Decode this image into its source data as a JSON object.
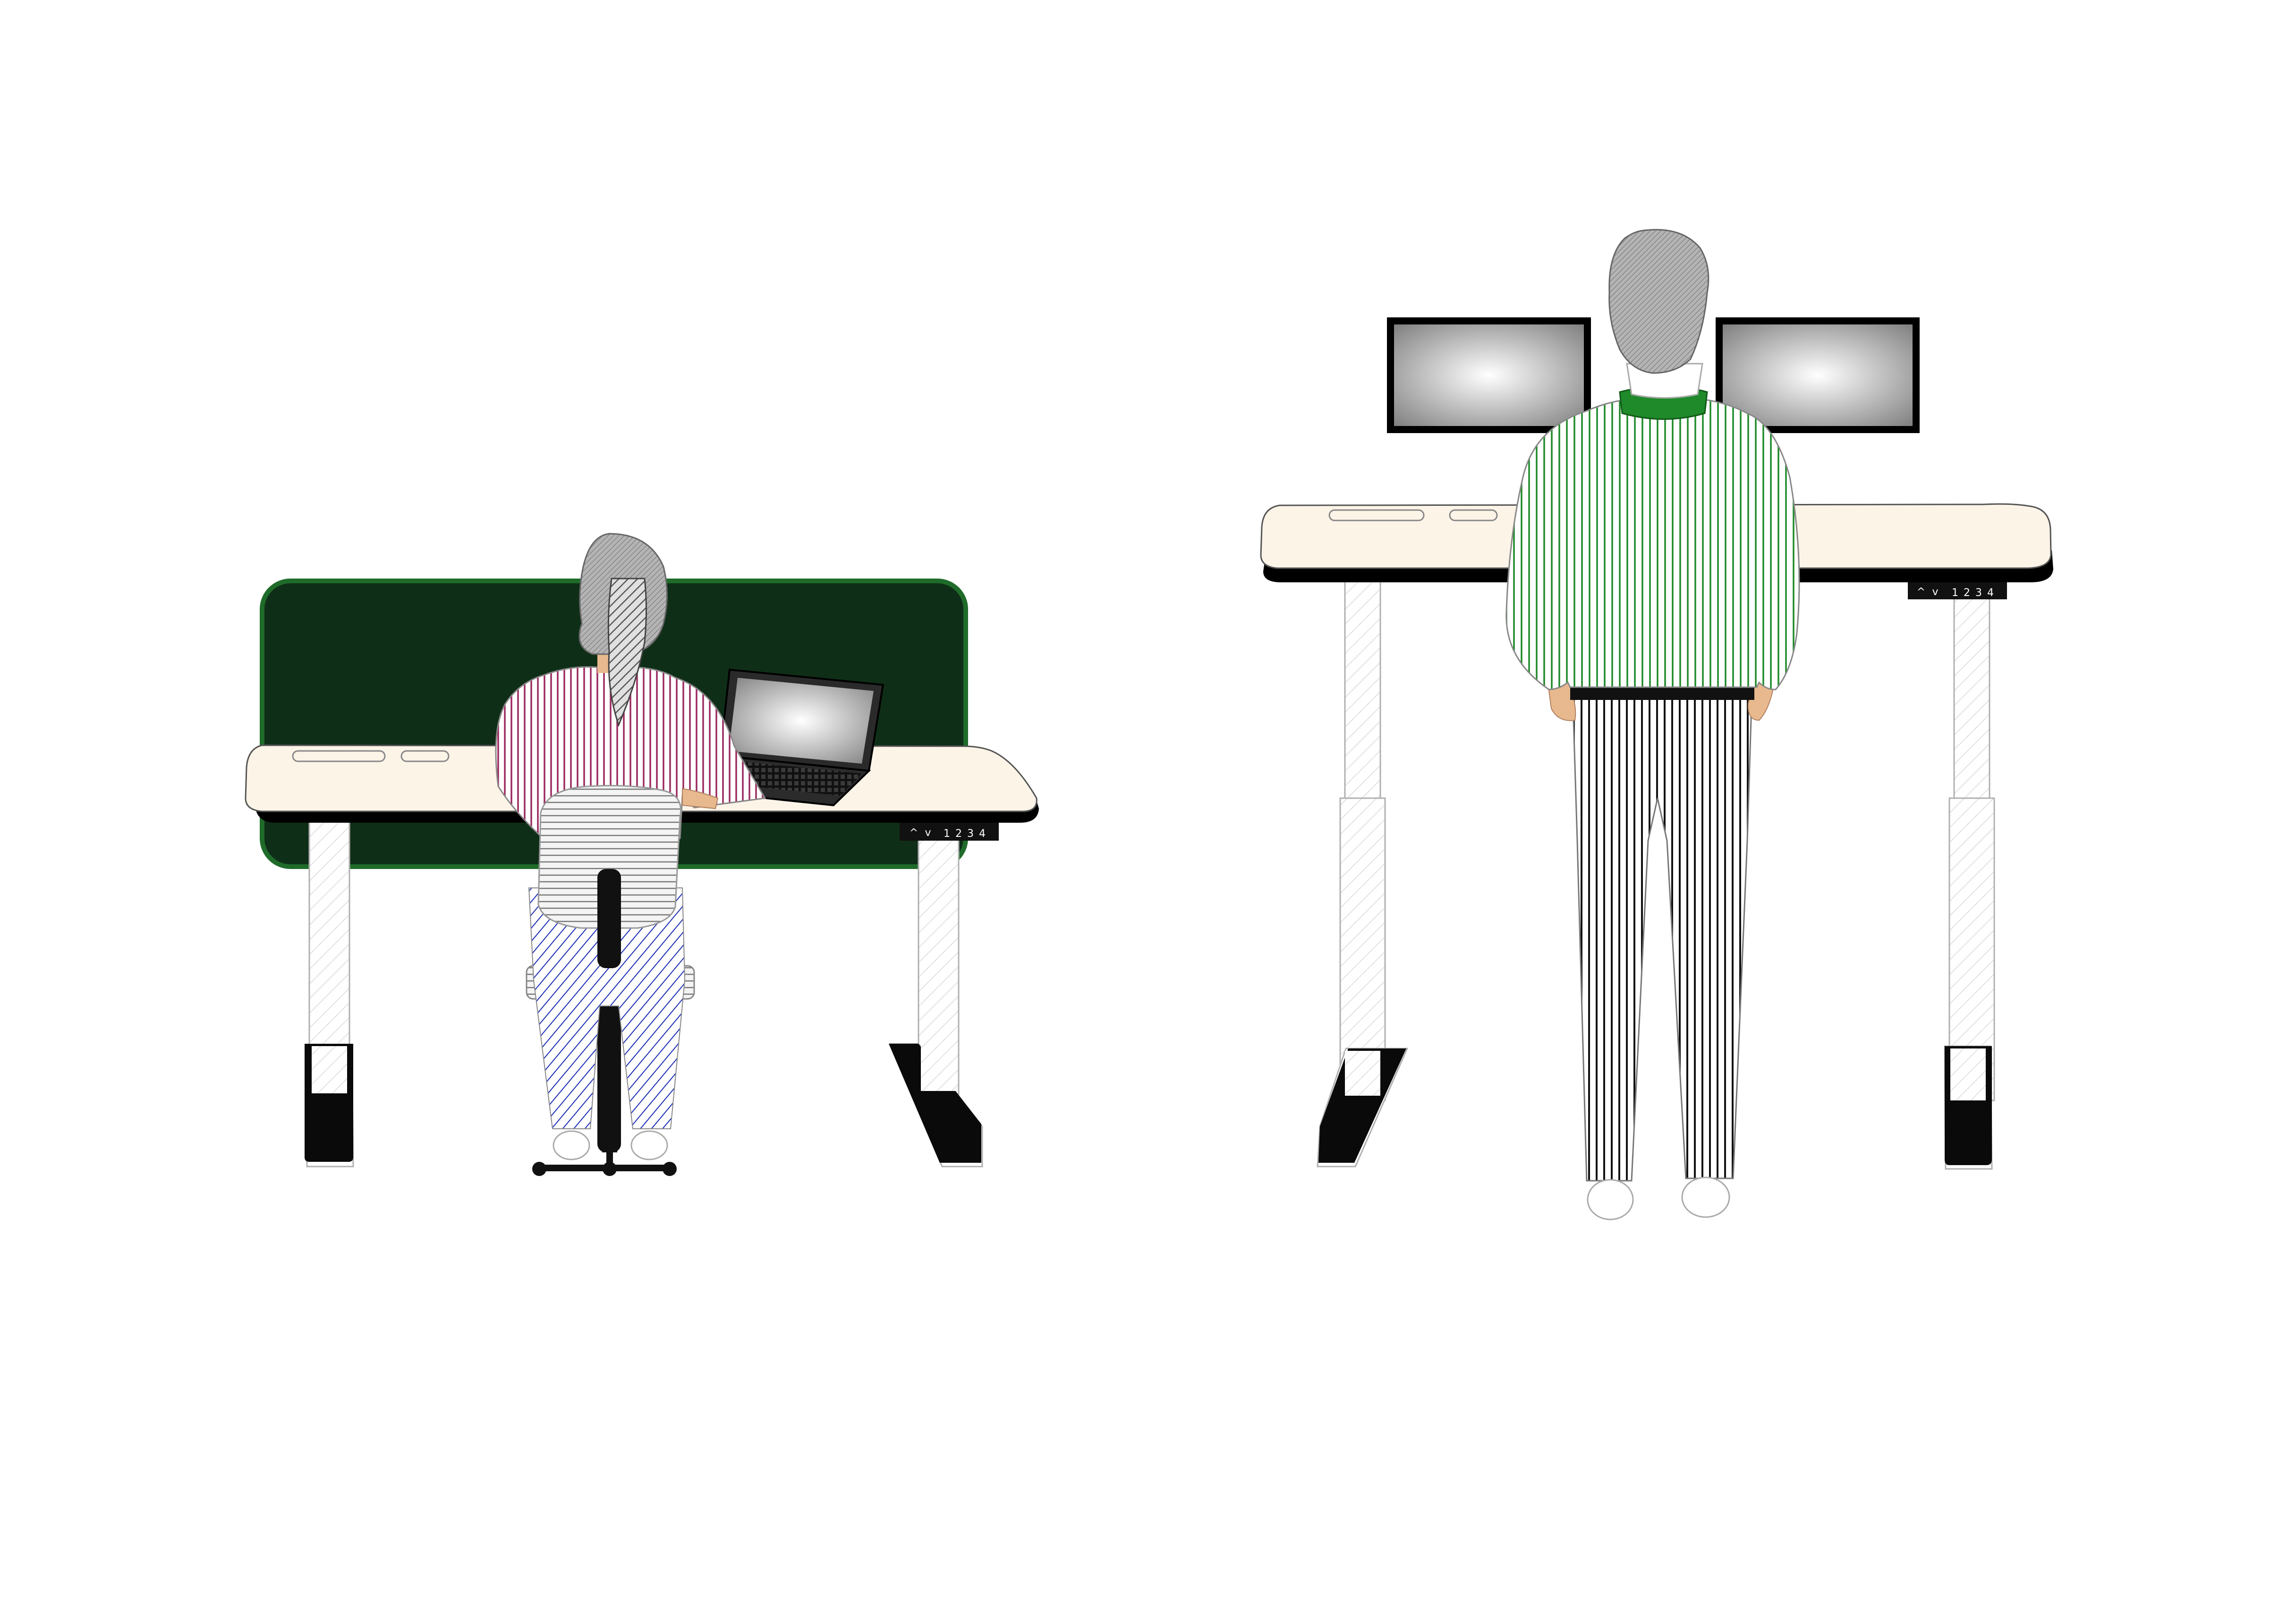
{
  "scene": {
    "background": "#ffffff",
    "left_workstation": {
      "mode": "sitting",
      "desk": {
        "top_color": "#fdf4e8",
        "edge_color": "#000000",
        "privacy_panel_color": "#0f2e17",
        "privacy_panel_border": "#1f6b2a"
      },
      "control_panel": {
        "up_icon": "chevron-up-icon",
        "down_icon": "chevron-down-icon",
        "presets": [
          "1",
          "2",
          "3",
          "4"
        ]
      },
      "device": "laptop",
      "person": {
        "shirt_stripe_color": "#9b2a5f",
        "pants_stripe_color": "#1a2db5",
        "hair_color": "#9a9a9a"
      }
    },
    "right_workstation": {
      "mode": "standing",
      "desk": {
        "top_color": "#fdf4e8",
        "edge_color": "#000000"
      },
      "control_panel": {
        "up_icon": "chevron-up-icon",
        "down_icon": "chevron-down-icon",
        "presets": [
          "1",
          "2",
          "3",
          "4"
        ]
      },
      "device": "dual-monitors",
      "person": {
        "shirt_stripe_color": "#1f8a2a",
        "collar_color": "#1f8a2a",
        "pants_stripe_color": "#000000",
        "hair_color": "#9a9a9a"
      }
    }
  }
}
